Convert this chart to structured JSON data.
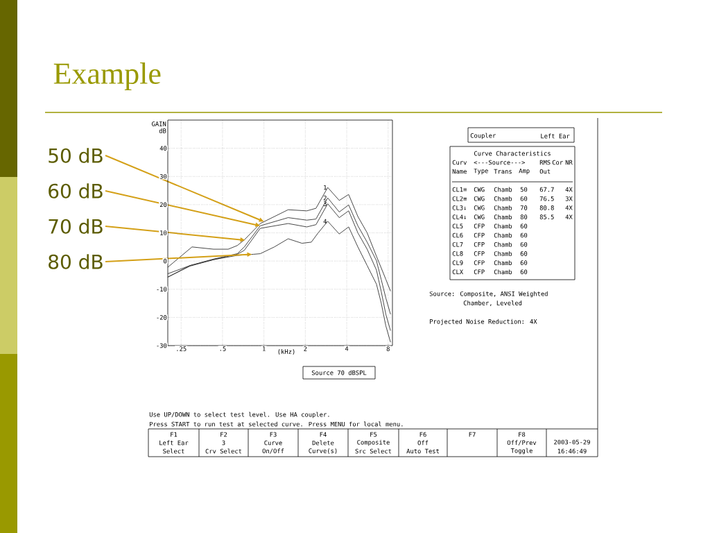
{
  "chart_data": {
    "type": "line",
    "title": "Example",
    "xlabel": "(kHz)",
    "ylabel": "GAIN dB",
    "log": "x",
    "xlim": [
      0.2,
      8.6
    ],
    "ylim": [
      -30,
      50
    ],
    "xticks": [
      {
        "value": 0.25,
        "label": ".25"
      },
      {
        "value": 0.5,
        "label": ".5"
      },
      1,
      2,
      4,
      8
    ],
    "yticks": [
      -30,
      -20,
      -10,
      0,
      10,
      20,
      30,
      40
    ],
    "grid": true,
    "line_style": "solid",
    "marker": "none",
    "series": [
      {
        "name": "1",
        "color": "#333333",
        "x": [
          0.2,
          0.3,
          0.43,
          0.55,
          0.64,
          0.72,
          0.94,
          1.5,
          2.05,
          2.39,
          2.91,
          3.53,
          4.13,
          4.82,
          5.63,
          6.58,
          7.12,
          7.7,
          8.33
        ],
        "values": [
          -2.2,
          5.0,
          4.2,
          4.2,
          5.5,
          7.5,
          13.3,
          18.2,
          17.8,
          18.7,
          26.1,
          21.5,
          23.6,
          15.8,
          10,
          1.7,
          -2.4,
          -6.5,
          -10.7
        ]
      },
      {
        "name": "2",
        "color": "#333333",
        "x": [
          0.2,
          0.29,
          0.43,
          0.64,
          0.72,
          0.94,
          1.5,
          2.05,
          2.39,
          2.91,
          3.53,
          4.13,
          4.82,
          5.63,
          6.58,
          7.12,
          7.7,
          8.33
        ],
        "values": [
          -4.5,
          -1.6,
          0.7,
          2.6,
          5,
          12.5,
          15.4,
          14.5,
          14.9,
          22.4,
          17.4,
          19.9,
          12.5,
          6.7,
          0.1,
          -6.5,
          -13.1,
          -18.9
        ]
      },
      {
        "name": "3",
        "color": "#333333",
        "x": [
          0.2,
          0.29,
          0.43,
          0.64,
          0.72,
          0.94,
          1.5,
          2.05,
          2.39,
          2.91,
          3.53,
          4.13,
          4.82,
          5.63,
          6.58,
          7.12,
          7.7,
          8.33
        ],
        "values": [
          -5.7,
          -1.8,
          0.5,
          2.4,
          3.8,
          11.6,
          13.3,
          12.1,
          12.9,
          20.3,
          15.4,
          17.8,
          10,
          4.2,
          -3.2,
          -10.7,
          -18.9,
          -24.7
        ]
      },
      {
        "name": "4",
        "color": "#333333",
        "x": [
          0.2,
          0.29,
          0.43,
          0.64,
          0.84,
          0.94,
          1.19,
          1.5,
          1.89,
          2.21,
          2.48,
          2.91,
          3.53,
          4.13,
          4.82,
          5.63,
          6.58,
          7.12,
          7.7,
          8.33
        ],
        "values": [
          -5.7,
          -1.6,
          0.5,
          2.0,
          2.4,
          2.6,
          5,
          7.9,
          6.3,
          6.7,
          10,
          14.1,
          9.6,
          12.1,
          5,
          -1.6,
          -8.2,
          -14.8,
          -23,
          -28.8
        ]
      }
    ],
    "annotations": [
      {
        "text": "50 dB",
        "x": 1.0,
        "y": 14.0
      },
      {
        "text": "60 dB",
        "x": 0.94,
        "y": 12.5
      },
      {
        "text": "70 dB",
        "x": 0.73,
        "y": 7.4
      },
      {
        "text": "80 dB",
        "x": 0.82,
        "y": 2.4
      },
      "Coupler",
      "Left Ear",
      "Curve Characteristics",
      "Curv",
      "<---Source--->",
      "RMS",
      "Cor",
      "NR",
      "Name",
      "Type",
      "Trans",
      "Amp",
      "Out",
      "CL1≡",
      "CWG",
      "Chamb",
      "50",
      "67.7",
      "4X",
      "CL2≡",
      "CWG",
      "Chamb",
      "60",
      "76.5",
      "3X",
      "CL3↓",
      "CWG",
      "Chamb",
      "70",
      "80.8",
      "4X",
      "CL4↓",
      "CWG",
      "Chamb",
      "80",
      "85.5",
      "4X",
      "CL5",
      "CFP",
      "Chamb",
      "60",
      "CL6",
      "CFP",
      "Chamb",
      "60",
      "CL7",
      "CFP",
      "Chamb",
      "60",
      "CL8",
      "CFP",
      "Chamb",
      "60",
      "CL9",
      "CFP",
      "Chamb",
      "60",
      "CLX",
      "CFP",
      "Chamb",
      "60",
      "Source: Composite, ANSI Weighted",
      "Chamber, Leveled",
      "Projected Noise Reduction: 4X",
      "Source 70 dBSPL",
      "Use UP/DOWN to select test level. Use HA coupler.",
      "Press START to run test at selected curve. Press MENU for local menu.",
      "F1",
      "Left Ear",
      "Select",
      "F2",
      "3",
      "Crv Select",
      "F3",
      "Curve",
      "On/Off",
      "F4",
      "Delete",
      "Curve(s)",
      "F5",
      "Composite",
      "Src Select",
      "F6",
      "Off",
      "Auto Test",
      "F7",
      "F8",
      "Off/Prev",
      "Toggle",
      "2003-05-29",
      "16:46:49"
    ]
  }
}
